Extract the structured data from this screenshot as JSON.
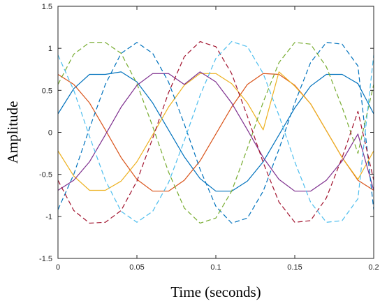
{
  "chart_data": {
    "type": "line",
    "title": "",
    "xlabel": "Time (seconds)",
    "ylabel": "Amplitude",
    "xlim": [
      0,
      0.2
    ],
    "ylim": [
      -1.5,
      1.5
    ],
    "xticks": [
      0,
      0.05,
      0.1,
      0.15,
      0.2
    ],
    "xtick_labels": [
      "0",
      "0.05",
      "0.1",
      "0.15",
      "0.2"
    ],
    "yticks": [
      -1.5,
      -1,
      -0.5,
      0,
      0.5,
      1,
      1.5
    ],
    "ytick_labels": [
      "-1.5",
      "-1",
      "-0.5",
      "0",
      "0.5",
      "1",
      "1.5"
    ],
    "grid": false,
    "legend": "none",
    "x": [
      0,
      0.01,
      0.02,
      0.03,
      0.04,
      0.05,
      0.06,
      0.07,
      0.08,
      0.09,
      0.1,
      0.11,
      0.12,
      0.13,
      0.14,
      0.15,
      0.16,
      0.17,
      0.18,
      0.19,
      0.2
    ],
    "series": [
      {
        "color": "#0072BD",
        "style": "solid",
        "values": [
          0.22,
          0.52,
          0.69,
          0.69,
          0.72,
          0.6,
          0.35,
          0.03,
          -0.29,
          -0.55,
          -0.7,
          -0.7,
          -0.58,
          -0.35,
          -0.03,
          0.29,
          0.55,
          0.69,
          0.69,
          0.58,
          0.22
        ]
      },
      {
        "color": "#D95319",
        "style": "solid",
        "values": [
          0.69,
          0.57,
          0.35,
          0.03,
          -0.3,
          -0.56,
          -0.7,
          -0.7,
          -0.57,
          -0.34,
          -0.02,
          0.3,
          0.57,
          0.7,
          0.69,
          0.56,
          0.34,
          0.02,
          -0.3,
          -0.57,
          -0.69
        ]
      },
      {
        "color": "#EDB120",
        "style": "solid",
        "values": [
          -0.22,
          -0.52,
          -0.69,
          -0.69,
          -0.58,
          -0.35,
          -0.03,
          0.3,
          0.56,
          0.7,
          0.7,
          0.58,
          0.35,
          0.03,
          0.72,
          0.55,
          0.34,
          0.02,
          -0.3,
          -0.56,
          -0.22
        ]
      },
      {
        "color": "#7E2F8E",
        "style": "solid",
        "values": [
          -0.69,
          -0.57,
          -0.35,
          -0.03,
          0.3,
          0.56,
          0.7,
          0.7,
          0.57,
          0.72,
          0.6,
          0.35,
          0.03,
          -0.3,
          -0.56,
          -0.7,
          -0.7,
          -0.57,
          -0.34,
          -0.02,
          -0.69
        ]
      },
      {
        "color": "#0072BD",
        "style": "dashed",
        "values": [
          -0.92,
          -0.5,
          0.05,
          0.57,
          0.94,
          1.07,
          0.94,
          0.6,
          0.1,
          -0.44,
          -0.88,
          -1.08,
          -1.02,
          -0.7,
          -0.2,
          0.35,
          0.83,
          1.07,
          1.05,
          0.79,
          -0.92
        ]
      },
      {
        "color": "#77AC30",
        "style": "dashed",
        "values": [
          0.57,
          0.93,
          1.07,
          1.07,
          0.94,
          0.58,
          0.07,
          -0.47,
          -0.9,
          -1.08,
          -1.02,
          -0.7,
          -0.19,
          0.36,
          0.83,
          1.07,
          1.05,
          0.78,
          0.3,
          -0.25,
          0.57
        ]
      },
      {
        "color": "#A2142F",
        "style": "dashed",
        "values": [
          -0.57,
          -0.93,
          -1.08,
          -1.07,
          -0.93,
          -0.58,
          -0.07,
          0.47,
          0.9,
          1.08,
          1.02,
          0.7,
          0.19,
          -0.36,
          -0.83,
          -1.07,
          -1.05,
          -0.78,
          -0.3,
          0.25,
          -0.57
        ]
      },
      {
        "color": "#4DBEEE",
        "style": "dashed",
        "values": [
          0.92,
          0.5,
          -0.05,
          -0.57,
          -0.94,
          -1.07,
          -0.94,
          -0.6,
          -0.1,
          0.44,
          0.88,
          1.08,
          1.02,
          0.7,
          0.2,
          -0.35,
          -0.83,
          -1.07,
          -1.05,
          -0.79,
          0.92
        ]
      }
    ]
  }
}
